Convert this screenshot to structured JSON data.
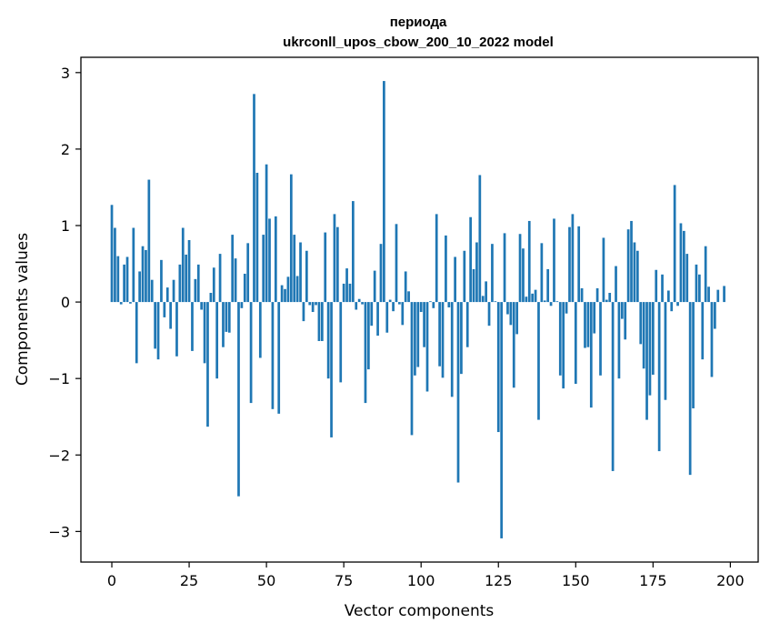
{
  "chart_data": {
    "type": "bar",
    "title_line1": "периода",
    "title_line2": "ukrconll_upos_cbow_200_10_2022 model",
    "xlabel": "Vector components",
    "ylabel": "Components values",
    "xlim": [
      -10,
      209
    ],
    "ylim": [
      -3.4,
      3.2
    ],
    "xticks": [
      0,
      25,
      50,
      75,
      100,
      125,
      150,
      175,
      200
    ],
    "xtick_labels": [
      "0",
      "25",
      "50",
      "75",
      "100",
      "125",
      "150",
      "175",
      "200"
    ],
    "yticks": [
      -3,
      -2,
      -1,
      0,
      1,
      2,
      3
    ],
    "ytick_labels": [
      "−3",
      "−2",
      "−1",
      "0",
      "1",
      "2",
      "3"
    ],
    "bar_color": "#1f77b4",
    "grid": false,
    "values": [
      1.27,
      0.97,
      0.6,
      -0.03,
      0.49,
      0.59,
      -0.02,
      0.97,
      -0.8,
      0.4,
      0.73,
      0.68,
      1.6,
      0.29,
      -0.61,
      -0.75,
      0.55,
      -0.2,
      0.19,
      -0.35,
      0.29,
      -0.71,
      0.49,
      0.97,
      0.62,
      0.81,
      -0.64,
      0.3,
      0.49,
      -0.1,
      -0.8,
      -1.63,
      0.12,
      0.45,
      -1.0,
      0.63,
      -0.59,
      -0.39,
      -0.4,
      0.88,
      0.57,
      -2.54,
      -0.08,
      0.37,
      0.77,
      -1.32,
      2.72,
      1.69,
      -0.73,
      0.88,
      1.8,
      1.09,
      -1.4,
      1.12,
      -1.46,
      0.22,
      0.17,
      0.33,
      1.67,
      0.88,
      0.34,
      0.78,
      -0.25,
      0.67,
      -0.04,
      -0.13,
      -0.04,
      -0.51,
      -0.51,
      0.91,
      -1.0,
      -1.77,
      1.15,
      0.98,
      -1.05,
      0.24,
      0.44,
      0.24,
      1.32,
      -0.1,
      0.04,
      -0.03,
      -1.32,
      -0.88,
      -0.31,
      0.41,
      -0.44,
      0.76,
      2.89,
      -0.4,
      0.03,
      -0.12,
      1.02,
      -0.03,
      -0.3,
      0.4,
      0.14,
      -1.74,
      -0.96,
      -0.85,
      -0.13,
      -0.59,
      -1.17,
      0.01,
      -0.08,
      1.15,
      -0.84,
      -0.99,
      0.87,
      -0.07,
      -1.24,
      0.59,
      -2.36,
      -0.94,
      0.67,
      -0.59,
      1.11,
      0.43,
      0.78,
      1.66,
      0.08,
      0.27,
      -0.31,
      0.76,
      0.01,
      -1.7,
      -3.09,
      0.9,
      -0.16,
      -0.3,
      -1.12,
      -0.42,
      0.89,
      0.7,
      0.07,
      1.06,
      0.11,
      0.16,
      -1.54,
      0.77,
      0.02,
      0.43,
      -0.05,
      1.09,
      0.01,
      -0.96,
      -1.13,
      -0.15,
      0.98,
      1.15,
      -1.07,
      0.99,
      0.18,
      -0.6,
      -0.59,
      -1.38,
      -0.41,
      0.18,
      -0.96,
      0.84,
      0.03,
      0.12,
      -2.21,
      0.47,
      -1.0,
      -0.22,
      -0.49,
      0.95,
      1.06,
      0.78,
      0.67,
      -0.55,
      -0.87,
      -1.54,
      -1.22,
      -0.95,
      0.42,
      -1.95,
      0.36,
      -1.28,
      0.15,
      -0.12,
      1.53,
      -0.05,
      1.03,
      0.93,
      0.63,
      -2.26,
      -1.39,
      0.49,
      0.36,
      -0.75,
      0.73,
      0.2,
      -0.98,
      -0.35,
      0.16,
      0.0,
      0.21,
      0.0
    ]
  }
}
